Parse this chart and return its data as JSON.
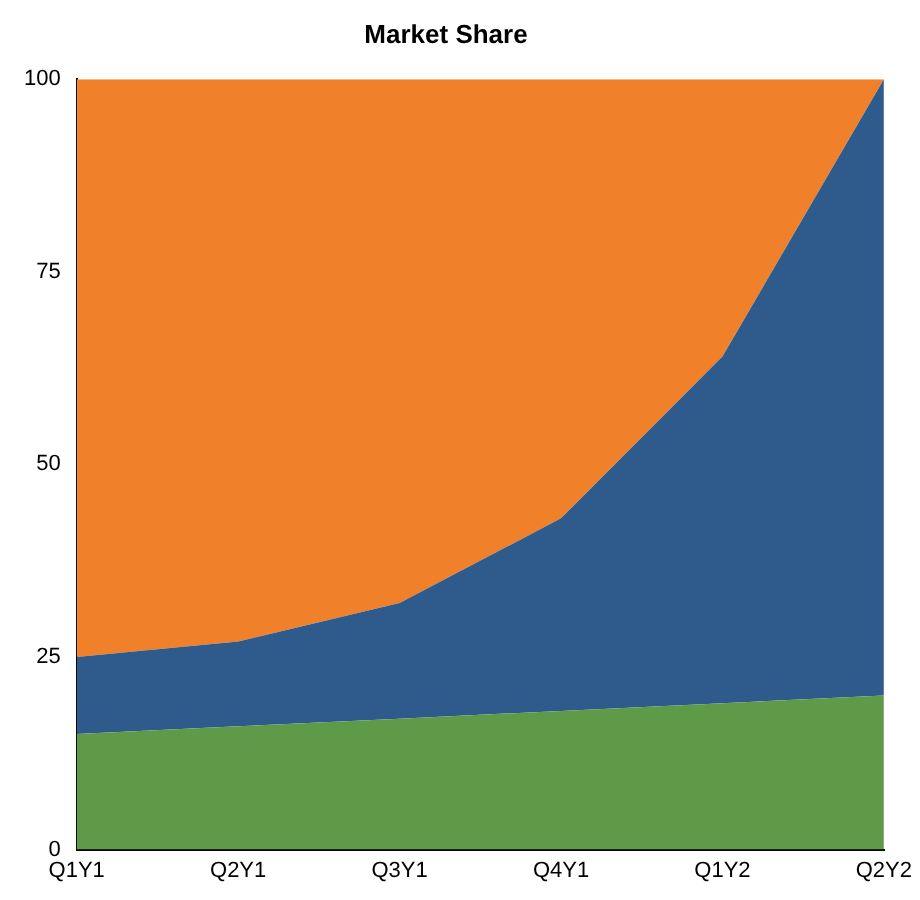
{
  "chart_data": {
    "type": "area",
    "title": "Market Share",
    "stacked": true,
    "categories": [
      "Q1Y1",
      "Q2Y1",
      "Q3Y1",
      "Q4Y1",
      "Q1Y2",
      "Q2Y2"
    ],
    "series": [
      {
        "color": "#5e9a48",
        "values": [
          15,
          16,
          17,
          18,
          19,
          20
        ]
      },
      {
        "color": "#2e5a8c",
        "values": [
          10,
          11,
          15,
          25,
          45,
          80
        ]
      },
      {
        "color": "#f0812a",
        "values": [
          75,
          73,
          68,
          57,
          36,
          0
        ]
      }
    ],
    "ylim": [
      0,
      100
    ],
    "yticks": [
      0,
      25,
      50,
      75,
      100
    ],
    "grid": false,
    "legend": false
  }
}
